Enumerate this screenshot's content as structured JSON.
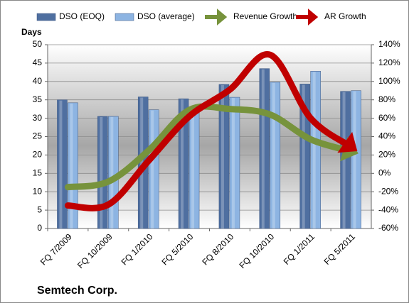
{
  "chart_data": {
    "type": "bar",
    "title": "Semtech Corp.",
    "y_label": "Days",
    "categories": [
      "FQ 7/2009",
      "FQ 10/2009",
      "FQ 1/2010",
      "FQ 5/2010",
      "FQ 8/2010",
      "FQ 10/2010",
      "FQ 1/2011",
      "FQ 5/2011"
    ],
    "series": [
      {
        "name": "DSO (EOQ)",
        "type": "bar",
        "color": "#4f6fa0",
        "values": [
          35,
          30.5,
          35.8,
          35.3,
          39.2,
          43.5,
          39.3,
          37.3
        ]
      },
      {
        "name": "DSO (average)",
        "type": "bar",
        "color": "#8db4e2",
        "values": [
          34.2,
          30.5,
          32.3,
          33,
          35.7,
          39.8,
          42.8,
          37.5
        ]
      },
      {
        "name": "Revenue Growth",
        "type": "line",
        "axis": "y2",
        "color": "#77933c",
        "values": [
          -15,
          -9,
          25,
          69,
          70,
          64,
          37,
          24
        ]
      },
      {
        "name": "AR Growth",
        "type": "line",
        "axis": "y2",
        "color": "#c00000",
        "values": [
          -35,
          -34,
          14,
          62,
          91,
          129,
          60,
          29
        ]
      }
    ],
    "ylim": [
      0,
      50
    ],
    "yticks": [
      0,
      5,
      10,
      15,
      20,
      25,
      30,
      35,
      40,
      45,
      50
    ],
    "y2lim": [
      -60,
      140
    ],
    "y2ticks": [
      {
        "value": -60,
        "label": "-60%"
      },
      {
        "value": -40,
        "label": "-40%"
      },
      {
        "value": -20,
        "label": "-20%"
      },
      {
        "value": 0,
        "label": "0%"
      },
      {
        "value": 20,
        "label": "20%"
      },
      {
        "value": 40,
        "label": "40%"
      },
      {
        "value": 60,
        "label": "60%"
      },
      {
        "value": 80,
        "label": "80%"
      },
      {
        "value": 100,
        "label": "100%"
      },
      {
        "value": 120,
        "label": "120%"
      },
      {
        "value": 140,
        "label": "140%"
      }
    ],
    "grid": true
  }
}
